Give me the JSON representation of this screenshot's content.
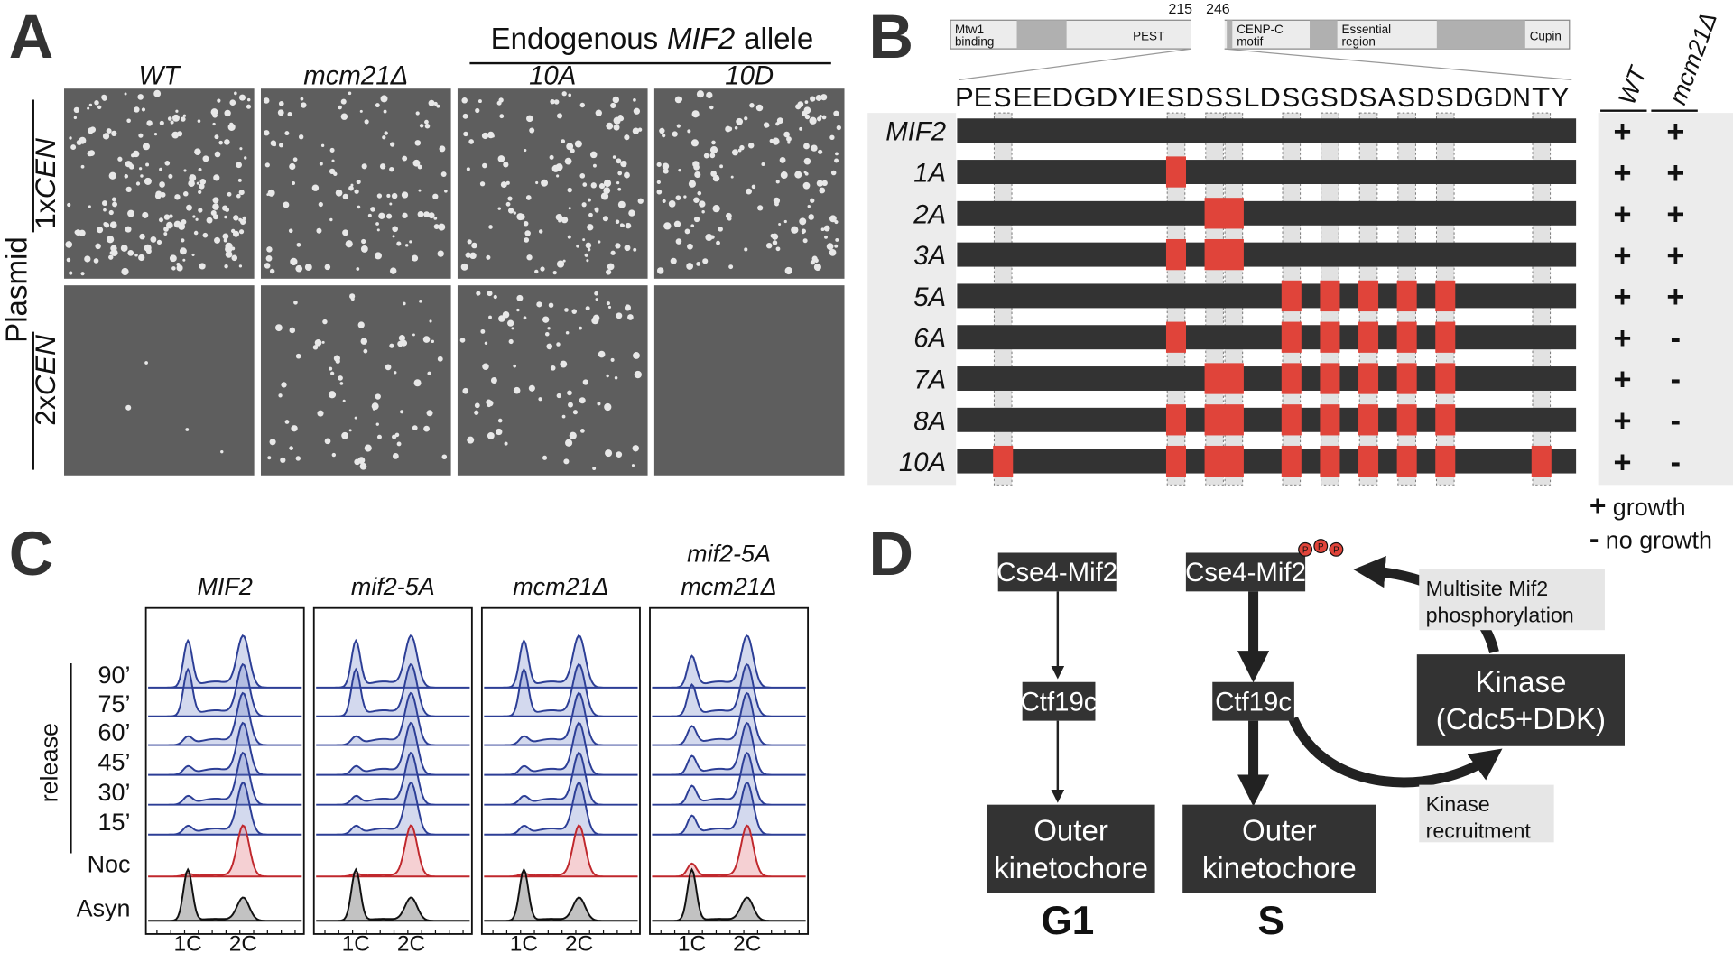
{
  "panel_a": {
    "label": "A",
    "header": {
      "prefix": "Endogenous",
      "gene": "MIF2",
      "suffix": "allele"
    },
    "columns": [
      "WT",
      "mcm21Δ",
      "10A",
      "10D"
    ],
    "rows": [
      {
        "prefix": "1x",
        "italic": "CEN"
      },
      {
        "prefix": "2x",
        "italic": "CEN"
      }
    ],
    "row_group": "Plasmid"
  },
  "panel_b": {
    "label": "B",
    "domains": [
      {
        "lines": [
          "Mtw1",
          "binding"
        ]
      },
      {
        "lines": [
          "PEST"
        ]
      },
      {
        "lines": [
          "CENP-C",
          "motif"
        ]
      },
      {
        "lines": [
          "Essential",
          "region"
        ]
      },
      {
        "lines": [
          "Cupin"
        ]
      }
    ],
    "positions": [
      215,
      246
    ],
    "sequence": [
      {
        "text": "PE",
        "color": "#111111"
      },
      {
        "text": "S",
        "color": "#e0443a"
      },
      {
        "text": "EEDGDYIE",
        "color": "#111111"
      },
      {
        "text": "S",
        "color": "#e0443a"
      },
      {
        "text": "D",
        "color": "#111111"
      },
      {
        "text": "S",
        "color": "#e0443a"
      },
      {
        "text": "S",
        "color": "#e0443a"
      },
      {
        "text": "LD",
        "color": "#111111"
      },
      {
        "text": "S",
        "color": "#e0443a"
      },
      {
        "text": "G",
        "color": "#111111"
      },
      {
        "text": "S",
        "color": "#e0443a"
      },
      {
        "text": "D",
        "color": "#111111"
      },
      {
        "text": "S",
        "color": "#e0443a"
      },
      {
        "text": "A",
        "color": "#111111"
      },
      {
        "text": "S",
        "color": "#e0443a"
      },
      {
        "text": "D",
        "color": "#111111"
      },
      {
        "text": "S",
        "color": "#e0443a"
      },
      {
        "text": "DGDN",
        "color": "#111111"
      },
      {
        "text": "T",
        "color": "#e0443a"
      },
      {
        "text": "Y",
        "color": "#111111"
      }
    ],
    "growth_columns": [
      "WT",
      "mcm21Δ"
    ],
    "alleles": [
      {
        "name": "MIF2",
        "mutated": [
          false,
          false,
          false,
          false,
          false,
          false,
          false,
          false,
          false,
          false
        ],
        "wt": "+",
        "mcm21": "+"
      },
      {
        "name": "1A",
        "mutated": [
          false,
          true,
          false,
          false,
          false,
          false,
          false,
          false,
          false,
          false
        ],
        "wt": "+",
        "mcm21": "+"
      },
      {
        "name": "2A",
        "mutated": [
          false,
          false,
          true,
          true,
          false,
          false,
          false,
          false,
          false,
          false
        ],
        "wt": "+",
        "mcm21": "+"
      },
      {
        "name": "3A",
        "mutated": [
          false,
          true,
          true,
          true,
          false,
          false,
          false,
          false,
          false,
          false
        ],
        "wt": "+",
        "mcm21": "+"
      },
      {
        "name": "5A",
        "mutated": [
          false,
          false,
          false,
          false,
          true,
          true,
          true,
          true,
          true,
          false
        ],
        "wt": "+",
        "mcm21": "+"
      },
      {
        "name": "6A",
        "mutated": [
          false,
          true,
          false,
          false,
          true,
          true,
          true,
          true,
          true,
          false
        ],
        "wt": "+",
        "mcm21": "-"
      },
      {
        "name": "7A",
        "mutated": [
          false,
          false,
          true,
          true,
          true,
          true,
          true,
          true,
          true,
          false
        ],
        "wt": "+",
        "mcm21": "-"
      },
      {
        "name": "8A",
        "mutated": [
          false,
          true,
          true,
          true,
          true,
          true,
          true,
          true,
          true,
          false
        ],
        "wt": "+",
        "mcm21": "-"
      },
      {
        "name": "10A",
        "mutated": [
          true,
          true,
          true,
          true,
          true,
          true,
          true,
          true,
          true,
          true
        ],
        "wt": "+",
        "mcm21": "-"
      }
    ],
    "legend": [
      {
        "symbol": "+",
        "text": "growth"
      },
      {
        "symbol": "-",
        "text": "no growth"
      }
    ]
  },
  "panel_c": {
    "label": "C",
    "columns": [
      [
        "MIF2"
      ],
      [
        "mif2-5A"
      ],
      [
        "mcm21Δ"
      ],
      [
        "mif2-5A",
        "mcm21Δ"
      ]
    ],
    "rows": [
      "90’",
      "75’",
      "60’",
      "45’",
      "30’",
      "15’",
      "Noc",
      "Asyn"
    ],
    "release": "release",
    "x_labels": [
      "1C",
      "2C"
    ]
  },
  "panel_d": {
    "label": "D",
    "g1": {
      "mif2": "Cse4-Mif2",
      "ctf19": "Ctf19c",
      "outer": [
        "Outer",
        "kinetochore"
      ],
      "phase": "G1"
    },
    "s": {
      "mif2": "Cse4-Mif2",
      "ctf19": "Ctf19c",
      "outer": [
        "Outer",
        "kinetochore"
      ],
      "phase": "S"
    },
    "kinase": [
      "Kinase",
      "(Cdc5+DDK)"
    ],
    "phospho_note": [
      "Multisite Mif2",
      "phosphorylation"
    ],
    "recruit_note": [
      "Kinase",
      "recruitment"
    ],
    "phospho": [
      "P",
      "P",
      "P"
    ]
  }
}
